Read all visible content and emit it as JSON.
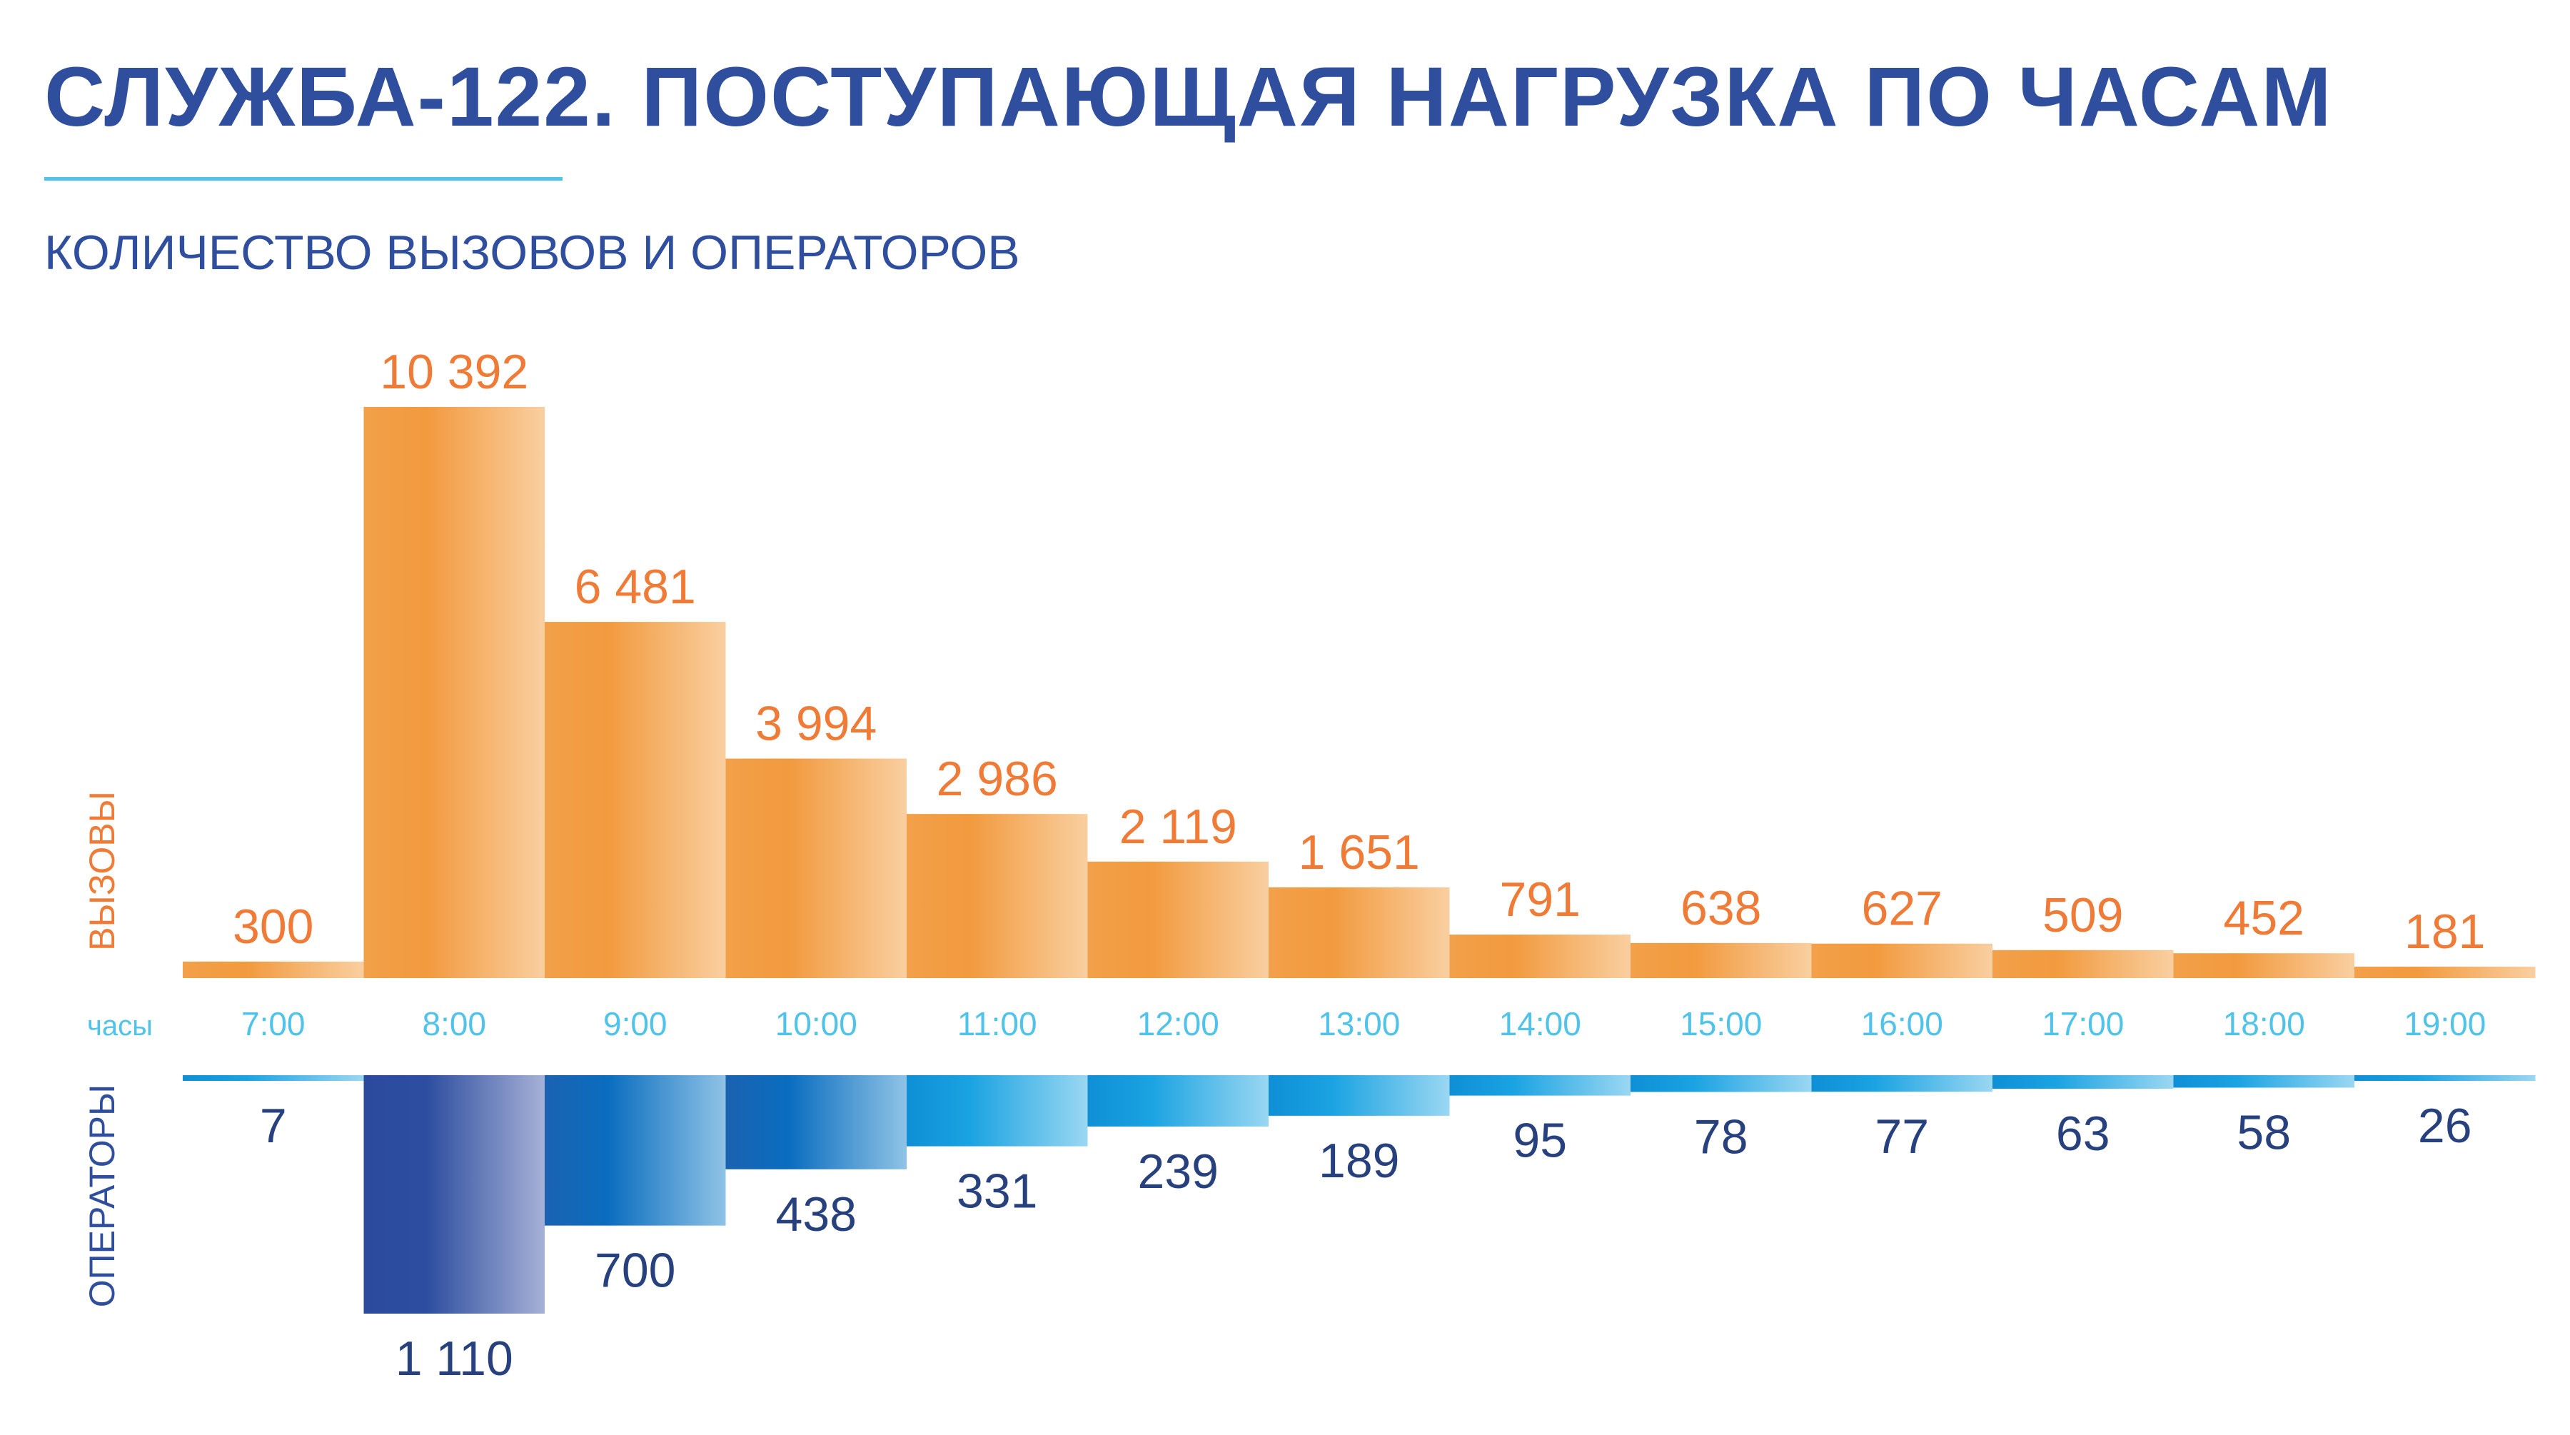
{
  "header": {
    "title": "СЛУЖБА-122. ПОСТУПАЮЩАЯ НАГРУЗКА ПО ЧАСАМ",
    "subtitle": "КОЛИЧЕСТВО ВЫЗОВОВ И ОПЕРАТОРОВ"
  },
  "colors": {
    "title": "#2f4f9e",
    "accent_rule": "#4fc3ea",
    "calls_bar": "#f2a04a",
    "calls_label": "#ef7b36",
    "hours_label": "#4fc3ea",
    "operators_dark": "#2b4a9e",
    "operators_mid": "#0d6fbf",
    "operators_light": "#1aa3e2",
    "operators_label": "#27407e"
  },
  "chart_data": {
    "type": "bar",
    "layout": "mirrored",
    "x_axis_label": "часы",
    "categories": [
      "7:00",
      "8:00",
      "9:00",
      "10:00",
      "11:00",
      "12:00",
      "13:00",
      "14:00",
      "15:00",
      "16:00",
      "17:00",
      "18:00",
      "19:00"
    ],
    "series": [
      {
        "name": "ВЫЗОВЫ",
        "direction": "up",
        "values": [
          300,
          10392,
          6481,
          3994,
          2986,
          2119,
          1651,
          791,
          638,
          627,
          509,
          452,
          181
        ],
        "labels": [
          "300",
          "10 392",
          "6 481",
          "3 994",
          "2 986",
          "2 119",
          "1 651",
          "791",
          "638",
          "627",
          "509",
          "452",
          "181"
        ]
      },
      {
        "name": "ОПЕРАТОРЫ",
        "direction": "down",
        "values": [
          7,
          1110,
          700,
          438,
          331,
          239,
          189,
          95,
          78,
          77,
          63,
          58,
          26
        ],
        "labels": [
          "7",
          "1 110",
          "700",
          "438",
          "331",
          "239",
          "189",
          "95",
          "78",
          "77",
          "63",
          "58",
          "26"
        ]
      }
    ]
  }
}
